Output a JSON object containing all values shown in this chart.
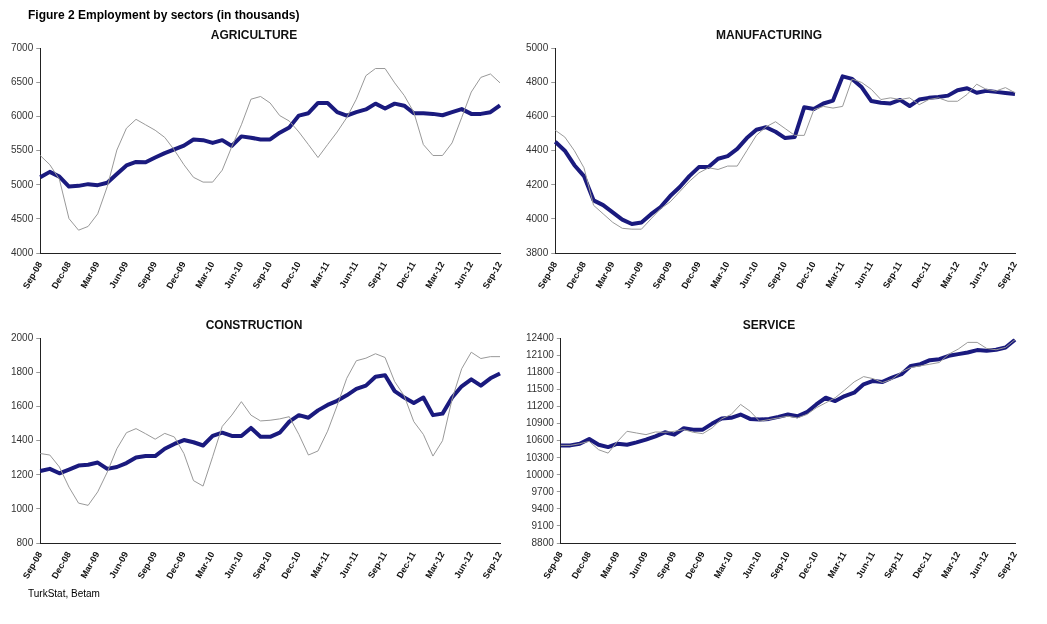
{
  "chart_data": [
    {
      "type": "line",
      "title": "AGRICULTURE",
      "annotations": [
        "Figure 2 Employment by sectors (in thousands)"
      ],
      "categories": [
        "Sep-08",
        null,
        null,
        "Dec-08",
        null,
        null,
        "Mar-09",
        null,
        null,
        "Jun-09",
        null,
        null,
        "Sep-09",
        null,
        null,
        "Dec-09",
        null,
        null,
        "Mar-10",
        null,
        null,
        "Jun-10",
        null,
        null,
        "Sep-10",
        null,
        null,
        "Dec-10",
        null,
        null,
        "Mar-11",
        null,
        null,
        "Jun-11",
        null,
        null,
        "Sep-11",
        null,
        null,
        "Dec-11",
        null,
        null,
        "Mar-12",
        null,
        null,
        "Jun-12",
        null,
        null,
        "Sep-12"
      ],
      "ylim": [
        4000,
        7000
      ],
      "yticks": [
        4000,
        4500,
        5000,
        5500,
        6000,
        6500,
        7000
      ],
      "grid": false,
      "legend": false,
      "marker": "none",
      "series": [
        {
          "color": "#999999",
          "values": [
            5430,
            5295,
            5080,
            4505,
            4335,
            4390,
            4575,
            4975,
            5510,
            5830,
            5960,
            5880,
            5800,
            5695,
            5510,
            5295,
            5110,
            5040,
            5040,
            5215,
            5560,
            5880,
            6255,
            6295,
            6200,
            6015,
            5935,
            5775,
            5590,
            5400,
            5590,
            5775,
            5985,
            6255,
            6600,
            6705,
            6705,
            6495,
            6310,
            6065,
            5590,
            5430,
            5430,
            5615,
            5985,
            6360,
            6575,
            6625,
            6495
          ]
        },
        {
          "color": "#1a1a7e",
          "values": [
            5110,
            5190,
            5120,
            4975,
            4985,
            5010,
            4995,
            5030,
            5160,
            5285,
            5335,
            5330,
            5400,
            5465,
            5520,
            5575,
            5665,
            5655,
            5615,
            5655,
            5570,
            5710,
            5690,
            5665,
            5665,
            5765,
            5840,
            6015,
            6050,
            6200,
            6200,
            6065,
            6015,
            6065,
            6105,
            6190,
            6120,
            6190,
            6160,
            6050,
            6050,
            6040,
            6020,
            6065,
            6110,
            6040,
            6040,
            6065,
            6165
          ]
        }
      ]
    },
    {
      "type": "line",
      "title": "MANUFACTURING",
      "categories": [
        "Sep-08",
        null,
        null,
        "Dec-08",
        null,
        null,
        "Mar-09",
        null,
        null,
        "Jun-09",
        null,
        null,
        "Sep-09",
        null,
        null,
        "Dec-09",
        null,
        null,
        "Mar-10",
        null,
        null,
        "Jun-10",
        null,
        null,
        "Sep-10",
        null,
        null,
        "Dec-10",
        null,
        null,
        "Mar-11",
        null,
        null,
        "Jun-11",
        null,
        null,
        "Sep-11",
        null,
        null,
        "Dec-11",
        null,
        null,
        "Mar-12",
        null,
        null,
        "Jun-12",
        null,
        null,
        "Sep-12"
      ],
      "ylim": [
        3800,
        5000
      ],
      "yticks": [
        3800,
        4000,
        4200,
        4400,
        4600,
        4800,
        5000
      ],
      "grid": false,
      "legend": false,
      "marker": "none",
      "series": [
        {
          "color": "#999999",
          "values": [
            4520,
            4480,
            4400,
            4300,
            4080,
            4030,
            3980,
            3945,
            3940,
            3940,
            4000,
            4060,
            4100,
            4160,
            4220,
            4270,
            4300,
            4290,
            4310,
            4310,
            4400,
            4490,
            4540,
            4570,
            4530,
            4490,
            4490,
            4640,
            4660,
            4650,
            4660,
            4820,
            4800,
            4760,
            4700,
            4710,
            4700,
            4710,
            4670,
            4700,
            4710,
            4690,
            4690,
            4730,
            4790,
            4760,
            4750,
            4770,
            4740
          ]
        },
        {
          "color": "#1a1a7e",
          "values": [
            4453,
            4400,
            4315,
            4251,
            4109,
            4081,
            4038,
            3996,
            3970,
            3979,
            4028,
            4070,
            4134,
            4187,
            4251,
            4304,
            4304,
            4353,
            4368,
            4411,
            4474,
            4523,
            4538,
            4511,
            4474,
            4481,
            4655,
            4645,
            4677,
            4694,
            4836,
            4821,
            4772,
            4691,
            4681,
            4677,
            4698,
            4662,
            4700,
            4710,
            4715,
            4723,
            4755,
            4766,
            4740,
            4751,
            4745,
            4738,
            4732
          ]
        }
      ]
    },
    {
      "type": "line",
      "title": "CONSTRUCTION",
      "annotations": [
        "TurkStat, Betam"
      ],
      "categories": [
        "Sep-08",
        null,
        null,
        "Dec-08",
        null,
        null,
        "Mar-09",
        null,
        null,
        "Jun-09",
        null,
        null,
        "Sep-09",
        null,
        null,
        "Dec-09",
        null,
        null,
        "Mar-10",
        null,
        null,
        "Jun-10",
        null,
        null,
        "Sep-10",
        null,
        null,
        "Dec-10",
        null,
        null,
        "Mar-11",
        null,
        null,
        "Jun-11",
        null,
        null,
        "Sep-11",
        null,
        null,
        "Dec-11",
        null,
        null,
        "Mar-12",
        null,
        null,
        "Jun-12",
        null,
        null,
        "Sep-12"
      ],
      "ylim": [
        800,
        2000
      ],
      "yticks": [
        800,
        1000,
        1200,
        1400,
        1600,
        1800,
        2000
      ],
      "grid": false,
      "legend": false,
      "marker": "none",
      "series": [
        {
          "color": "#999999",
          "values": [
            1325,
            1316,
            1246,
            1128,
            1034,
            1021,
            1100,
            1216,
            1353,
            1447,
            1471,
            1441,
            1409,
            1443,
            1422,
            1325,
            1166,
            1134,
            1306,
            1484,
            1550,
            1629,
            1550,
            1516,
            1520,
            1528,
            1541,
            1437,
            1316,
            1340,
            1456,
            1606,
            1766,
            1869,
            1884,
            1910,
            1888,
            1747,
            1663,
            1512,
            1437,
            1310,
            1400,
            1644,
            1822,
            1919,
            1882,
            1893,
            1893
          ]
        },
        {
          "color": "#1a1a7e",
          "values": [
            1222,
            1235,
            1209,
            1231,
            1254,
            1259,
            1272,
            1235,
            1246,
            1269,
            1302,
            1310,
            1310,
            1353,
            1381,
            1404,
            1391,
            1372,
            1428,
            1447,
            1428,
            1428,
            1475,
            1423,
            1423,
            1447,
            1512,
            1550,
            1535,
            1578,
            1610,
            1634,
            1666,
            1704,
            1723,
            1775,
            1784,
            1691,
            1653,
            1621,
            1653,
            1550,
            1559,
            1653,
            1719,
            1760,
            1723,
            1766,
            1794
          ]
        }
      ]
    },
    {
      "type": "line",
      "title": "SERVICE",
      "categories": [
        "Sep-08",
        null,
        null,
        "Dec-08",
        null,
        null,
        "Mar-09",
        null,
        null,
        "Jun-09",
        null,
        null,
        "Sep-09",
        null,
        null,
        "Dec-09",
        null,
        null,
        "Mar-10",
        null,
        null,
        "Jun-10",
        null,
        null,
        "Sep-10",
        null,
        null,
        "Dec-10",
        null,
        null,
        "Mar-11",
        null,
        null,
        "Jun-11",
        null,
        null,
        "Sep-11",
        null,
        null,
        "Dec-11",
        null,
        null,
        "Mar-12",
        null,
        null,
        "Jun-12",
        null,
        null,
        "Sep-12"
      ],
      "ylim": [
        8800,
        12400
      ],
      "yticks": [
        8800,
        9100,
        9400,
        9700,
        10000,
        10300,
        10600,
        10900,
        11200,
        11500,
        11800,
        12100,
        12400
      ],
      "grid": false,
      "legend": false,
      "marker": "none",
      "series": [
        {
          "color": "#999999",
          "values": [
            10518,
            10518,
            10547,
            10589,
            10441,
            10382,
            10589,
            10766,
            10736,
            10707,
            10754,
            10748,
            10766,
            10795,
            10748,
            10724,
            10825,
            10984,
            11061,
            11238,
            11120,
            10943,
            10972,
            11002,
            11031,
            11002,
            11061,
            11179,
            11267,
            11356,
            11492,
            11634,
            11728,
            11692,
            11622,
            11681,
            11811,
            11888,
            11917,
            11946,
            11976,
            12123,
            12212,
            12330,
            12330,
            12224,
            12200,
            12241,
            12377
          ]
        },
        {
          "color": "#1a1a7e",
          "values": [
            10518,
            10518,
            10547,
            10630,
            10530,
            10488,
            10547,
            10530,
            10571,
            10618,
            10677,
            10748,
            10707,
            10819,
            10795,
            10795,
            10901,
            10990,
            11002,
            11061,
            10984,
            10972,
            10984,
            11020,
            11061,
            11031,
            11102,
            11238,
            11356,
            11297,
            11386,
            11445,
            11592,
            11651,
            11634,
            11710,
            11770,
            11917,
            11946,
            12017,
            12035,
            12094,
            12123,
            12153,
            12194,
            12182,
            12200,
            12241,
            12377
          ]
        }
      ]
    }
  ]
}
